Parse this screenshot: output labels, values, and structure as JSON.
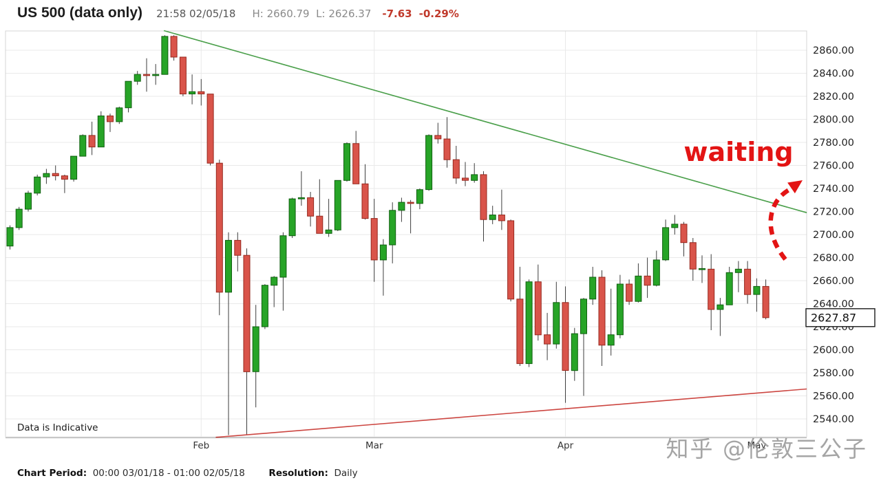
{
  "header": {
    "title": "US 500 (data only)",
    "timestamp": "21:58 02/05/18",
    "high_label": "H:",
    "high_value": "2660.79",
    "low_label": "L:",
    "low_value": "2626.37",
    "change_value": "-7.63",
    "change_pct": "-0.29%"
  },
  "annotations": {
    "waiting_text": "waiting",
    "current_price": 2627.87,
    "current_price_label": "2627.87",
    "indicative_note": "Data is Indicative"
  },
  "watermark": {
    "text": "知乎 @伦敦三公子"
  },
  "footer": {
    "period_label": "Chart Period:",
    "period_value": "00:00 03/01/18 - 01:00 02/05/18",
    "resolution_label": "Resolution:",
    "resolution_value": "Daily"
  },
  "colors": {
    "up_fill": "#27a427",
    "up_border": "#0f5f0f",
    "down_fill": "#d9544a",
    "down_border": "#96281e",
    "wick": "#3d3d3d",
    "grid": "#e9e9e9",
    "plot_border": "#d4d4d4",
    "axis_line": "#a6a6a6",
    "trend_green": "#4a9f4a",
    "trend_red": "#cc4540",
    "accent_red": "#e31414",
    "change_red": "#c0392b",
    "watermark_gray": "#9e9e9e"
  },
  "chart_data": {
    "type": "candlestick",
    "title": "US 500 (data only)",
    "xlabel": "",
    "ylabel": "",
    "grid": true,
    "legend": false,
    "y_axis": {
      "ticks": [
        2860,
        2840,
        2820,
        2800,
        2780,
        2760,
        2740,
        2720,
        2700,
        2680,
        2660,
        2640,
        2620,
        2600,
        2580,
        2560,
        2540
      ],
      "decimals": 2,
      "side": "right"
    },
    "x_axis": {
      "month_ticks": [
        {
          "label": "Feb",
          "candle_index": 21
        },
        {
          "label": "Mar",
          "candle_index": 40
        },
        {
          "label": "Apr",
          "candle_index": 61
        },
        {
          "label": "May",
          "candle_index": 82
        }
      ]
    },
    "dates": [
      "01-02",
      "01-03",
      "01-04",
      "01-05",
      "01-08",
      "01-09",
      "01-10",
      "01-11",
      "01-12",
      "01-16",
      "01-17",
      "01-18",
      "01-19",
      "01-22",
      "01-23",
      "01-24",
      "01-25",
      "01-26",
      "01-29",
      "01-30",
      "01-31",
      "02-01",
      "02-02",
      "02-05",
      "02-06",
      "02-07",
      "02-08",
      "02-09",
      "02-12",
      "02-13",
      "02-14",
      "02-15",
      "02-16",
      "02-20",
      "02-21",
      "02-22",
      "02-23",
      "02-26",
      "02-27",
      "02-28",
      "03-01",
      "03-02",
      "03-05",
      "03-06",
      "03-07",
      "03-08",
      "03-09",
      "03-12",
      "03-13",
      "03-14",
      "03-15",
      "03-16",
      "03-19",
      "03-20",
      "03-21",
      "03-22",
      "03-23",
      "03-26",
      "03-27",
      "03-28",
      "03-29",
      "04-02",
      "04-03",
      "04-04",
      "04-05",
      "04-06",
      "04-09",
      "04-10",
      "04-11",
      "04-12",
      "04-13",
      "04-16",
      "04-17",
      "04-18",
      "04-19",
      "04-20",
      "04-23",
      "04-24",
      "04-25",
      "04-26",
      "04-27",
      "04-30",
      "05-01",
      "05-02"
    ],
    "ohlc": [
      [
        2690,
        2708,
        2687,
        2706
      ],
      [
        2706,
        2724,
        2704,
        2722
      ],
      [
        2722,
        2738,
        2720,
        2736
      ],
      [
        2736,
        2752,
        2734,
        2750
      ],
      [
        2750,
        2757,
        2744,
        2753
      ],
      [
        2753,
        2760,
        2747,
        2751
      ],
      [
        2751,
        2752,
        2736,
        2748
      ],
      [
        2748,
        2768,
        2746,
        2768
      ],
      [
        2768,
        2787,
        2768,
        2786
      ],
      [
        2786,
        2798,
        2769,
        2776
      ],
      [
        2776,
        2807,
        2776,
        2803
      ],
      [
        2803,
        2805,
        2789,
        2798
      ],
      [
        2798,
        2811,
        2796,
        2810
      ],
      [
        2810,
        2833,
        2806,
        2833
      ],
      [
        2833,
        2842,
        2830,
        2839
      ],
      [
        2839,
        2853,
        2824,
        2838
      ],
      [
        2838,
        2848,
        2830,
        2839
      ],
      [
        2839,
        2873,
        2846,
        2872
      ],
      [
        2872,
        2873,
        2851,
        2854
      ],
      [
        2854,
        2854,
        2820,
        2822
      ],
      [
        2822,
        2839,
        2813,
        2824
      ],
      [
        2824,
        2835,
        2812,
        2822
      ],
      [
        2822,
        2822,
        2760,
        2762
      ],
      [
        2762,
        2765,
        2630,
        2650
      ],
      [
        2650,
        2702,
        2526,
        2695
      ],
      [
        2695,
        2702,
        2668,
        2682
      ],
      [
        2682,
        2688,
        2526,
        2581
      ],
      [
        2581,
        2639,
        2550,
        2620
      ],
      [
        2620,
        2657,
        2618,
        2656
      ],
      [
        2656,
        2664,
        2637,
        2663
      ],
      [
        2663,
        2702,
        2634,
        2699
      ],
      [
        2699,
        2732,
        2697,
        2731
      ],
      [
        2731,
        2755,
        2725,
        2732
      ],
      [
        2732,
        2737,
        2707,
        2716
      ],
      [
        2716,
        2748,
        2701,
        2701
      ],
      [
        2701,
        2731,
        2698,
        2704
      ],
      [
        2704,
        2747,
        2703,
        2747
      ],
      [
        2747,
        2780,
        2746,
        2779
      ],
      [
        2779,
        2790,
        2744,
        2744
      ],
      [
        2744,
        2761,
        2713,
        2714
      ],
      [
        2714,
        2731,
        2659,
        2678
      ],
      [
        2678,
        2696,
        2647,
        2691
      ],
      [
        2691,
        2728,
        2675,
        2721
      ],
      [
        2721,
        2732,
        2711,
        2728
      ],
      [
        2728,
        2730,
        2701,
        2727
      ],
      [
        2727,
        2740,
        2722,
        2739
      ],
      [
        2739,
        2787,
        2738,
        2786
      ],
      [
        2786,
        2797,
        2779,
        2783
      ],
      [
        2783,
        2802,
        2758,
        2765
      ],
      [
        2765,
        2777,
        2744,
        2749
      ],
      [
        2749,
        2763,
        2742,
        2747
      ],
      [
        2747,
        2762,
        2745,
        2752
      ],
      [
        2752,
        2755,
        2694,
        2713
      ],
      [
        2713,
        2725,
        2709,
        2717
      ],
      [
        2717,
        2739,
        2704,
        2712
      ],
      [
        2712,
        2713,
        2642,
        2644
      ],
      [
        2644,
        2672,
        2586,
        2588
      ],
      [
        2588,
        2661,
        2585,
        2659
      ],
      [
        2659,
        2674,
        2608,
        2613
      ],
      [
        2613,
        2632,
        2591,
        2605
      ],
      [
        2605,
        2659,
        2601,
        2641
      ],
      [
        2641,
        2655,
        2554,
        2582
      ],
      [
        2582,
        2619,
        2573,
        2614
      ],
      [
        2614,
        2645,
        2560,
        2644
      ],
      [
        2644,
        2672,
        2639,
        2663
      ],
      [
        2663,
        2669,
        2586,
        2604
      ],
      [
        2604,
        2653,
        2595,
        2613
      ],
      [
        2613,
        2665,
        2610,
        2657
      ],
      [
        2657,
        2661,
        2639,
        2642
      ],
      [
        2642,
        2675,
        2641,
        2664
      ],
      [
        2664,
        2680,
        2645,
        2656
      ],
      [
        2656,
        2686,
        2655,
        2678
      ],
      [
        2678,
        2713,
        2677,
        2706
      ],
      [
        2706,
        2717,
        2700,
        2709
      ],
      [
        2709,
        2711,
        2681,
        2693
      ],
      [
        2693,
        2697,
        2660,
        2670
      ],
      [
        2670,
        2682,
        2658,
        2670
      ],
      [
        2670,
        2683,
        2617,
        2635
      ],
      [
        2635,
        2645,
        2612,
        2639
      ],
      [
        2639,
        2672,
        2639,
        2667
      ],
      [
        2667,
        2677,
        2650,
        2670
      ],
      [
        2670,
        2677,
        2640,
        2648
      ],
      [
        2648,
        2662,
        2633,
        2655
      ],
      [
        2655,
        2661,
        2626.4,
        2627.9
      ]
    ],
    "trendlines": [
      {
        "name": "descending-resistance",
        "color_key": "trend_green",
        "x1_index": 16.9,
        "price1": 2877,
        "x2_index": 87.5,
        "price2": 2719
      },
      {
        "name": "ascending-support",
        "color_key": "trend_red",
        "x1_index": 22.6,
        "price1": 2524,
        "x2_index": 87.5,
        "price2": 2566
      }
    ]
  }
}
